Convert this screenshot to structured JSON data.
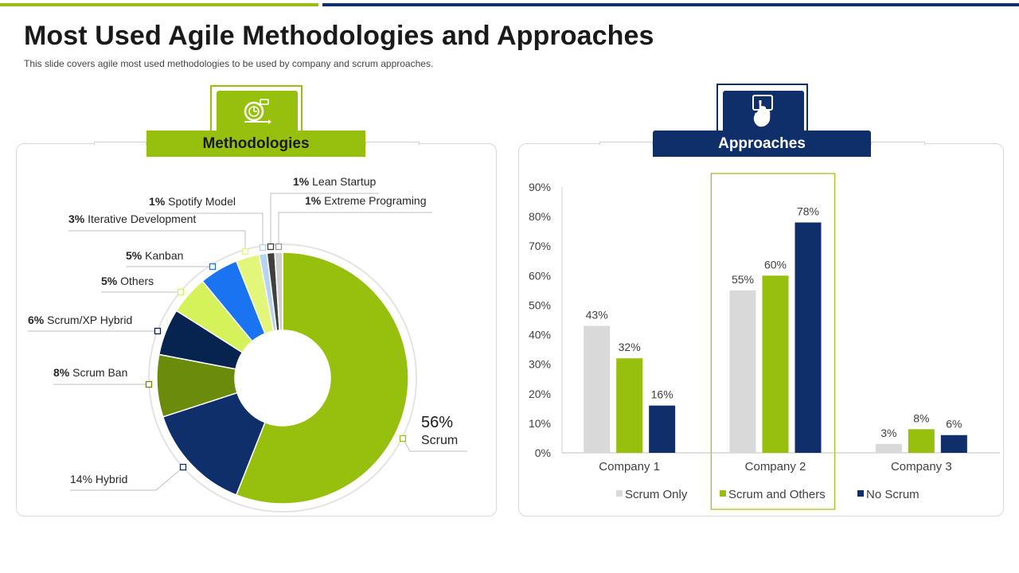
{
  "slide": {
    "title": "Most Used Agile Methodologies and Approaches",
    "subtitle": "This slide covers agile most used methodologies to be used by company and scrum approaches."
  },
  "colors": {
    "green": "#97c00e",
    "navy": "#0f2f6b",
    "light_grey": "#d9d9d9"
  },
  "methodologies": {
    "header": "Methodologies",
    "icon": "cycle-timer-icon"
  },
  "approaches": {
    "header": "Approaches",
    "icon": "tap-hand-icon"
  },
  "chart_data": [
    {
      "type": "pie",
      "donut": true,
      "slices": [
        {
          "label": "Scrum",
          "value": 56,
          "percent_text": "56%",
          "color": "#97c00e"
        },
        {
          "label": "Hybrid",
          "value": 14,
          "percent_text": "14%",
          "color": "#0f2f6b"
        },
        {
          "label": "Scrum Ban",
          "value": 8,
          "percent_text": "8%",
          "color": "#6a8c0a"
        },
        {
          "label": "Scrum/XP Hybrid",
          "value": 6,
          "percent_text": "6%",
          "color": "#06244f"
        },
        {
          "label": "Others",
          "value": 5,
          "percent_text": "5%",
          "color": "#d6f25a"
        },
        {
          "label": "Kanban",
          "value": 5,
          "percent_text": "5%",
          "color": "#1a73f0"
        },
        {
          "label": "Iterative  Development",
          "value": 3,
          "percent_text": "3%",
          "color": "#e2f77a"
        },
        {
          "label": "Spotify Model",
          "value": 1,
          "percent_text": "1%",
          "color": "#b7d3f2"
        },
        {
          "label": "Lean Startup",
          "value": 1,
          "percent_text": "1%",
          "color": "#404040"
        },
        {
          "label": "Extreme Programing",
          "value": 1,
          "percent_text": "1%",
          "color": "#d0d0d0"
        }
      ]
    },
    {
      "type": "bar",
      "categories": [
        "Company 1",
        "Company 2",
        "Company 3"
      ],
      "series": [
        {
          "name": "Scrum Only",
          "color": "#d9d9d9",
          "values": [
            43,
            55,
            3
          ]
        },
        {
          "name": "Scrum and Others",
          "color": "#97c00e",
          "values": [
            32,
            60,
            8
          ]
        },
        {
          "name": "No Scrum",
          "color": "#0f2f6b",
          "values": [
            16,
            78,
            6
          ]
        }
      ],
      "value_labels": [
        [
          "43%",
          "55%",
          "3%"
        ],
        [
          "32%",
          "60%",
          "8%"
        ],
        [
          "16%",
          "78%",
          "6%"
        ]
      ],
      "yticks": [
        "0%",
        "10%",
        "20%",
        "30%",
        "40%",
        "50%",
        "60%",
        "70%",
        "80%",
        "90%"
      ],
      "ylim": [
        0,
        90
      ],
      "highlight_category": "Company 2",
      "legend_position": "bottom"
    }
  ]
}
